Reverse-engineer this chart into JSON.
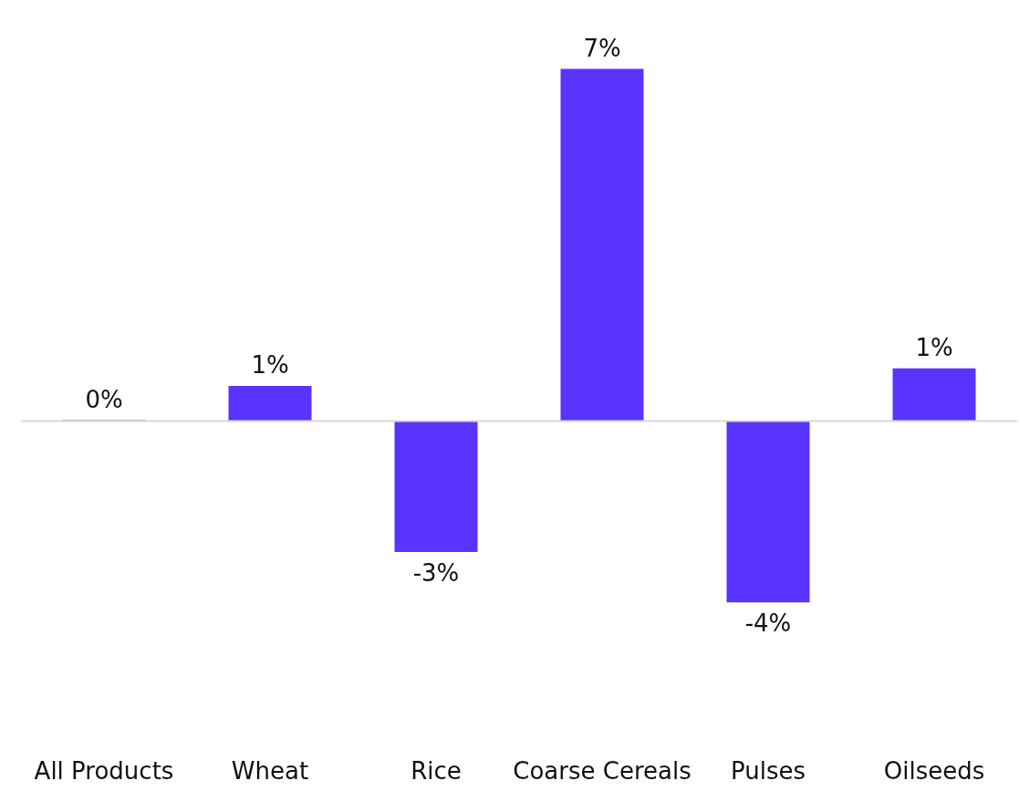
{
  "chart_data": {
    "type": "bar",
    "categories": [
      "All Products",
      "Wheat",
      "Rice",
      "Coarse Cereals",
      "Pulses",
      "Oilseeds"
    ],
    "values": [
      0.02,
      0.7,
      -2.6,
      7,
      -3.6,
      1.05
    ],
    "value_labels": [
      "0%",
      "1%",
      "-3%",
      "7%",
      "-4%",
      "1%"
    ],
    "color": "#5a33ff",
    "grid": false,
    "legend": false
  }
}
